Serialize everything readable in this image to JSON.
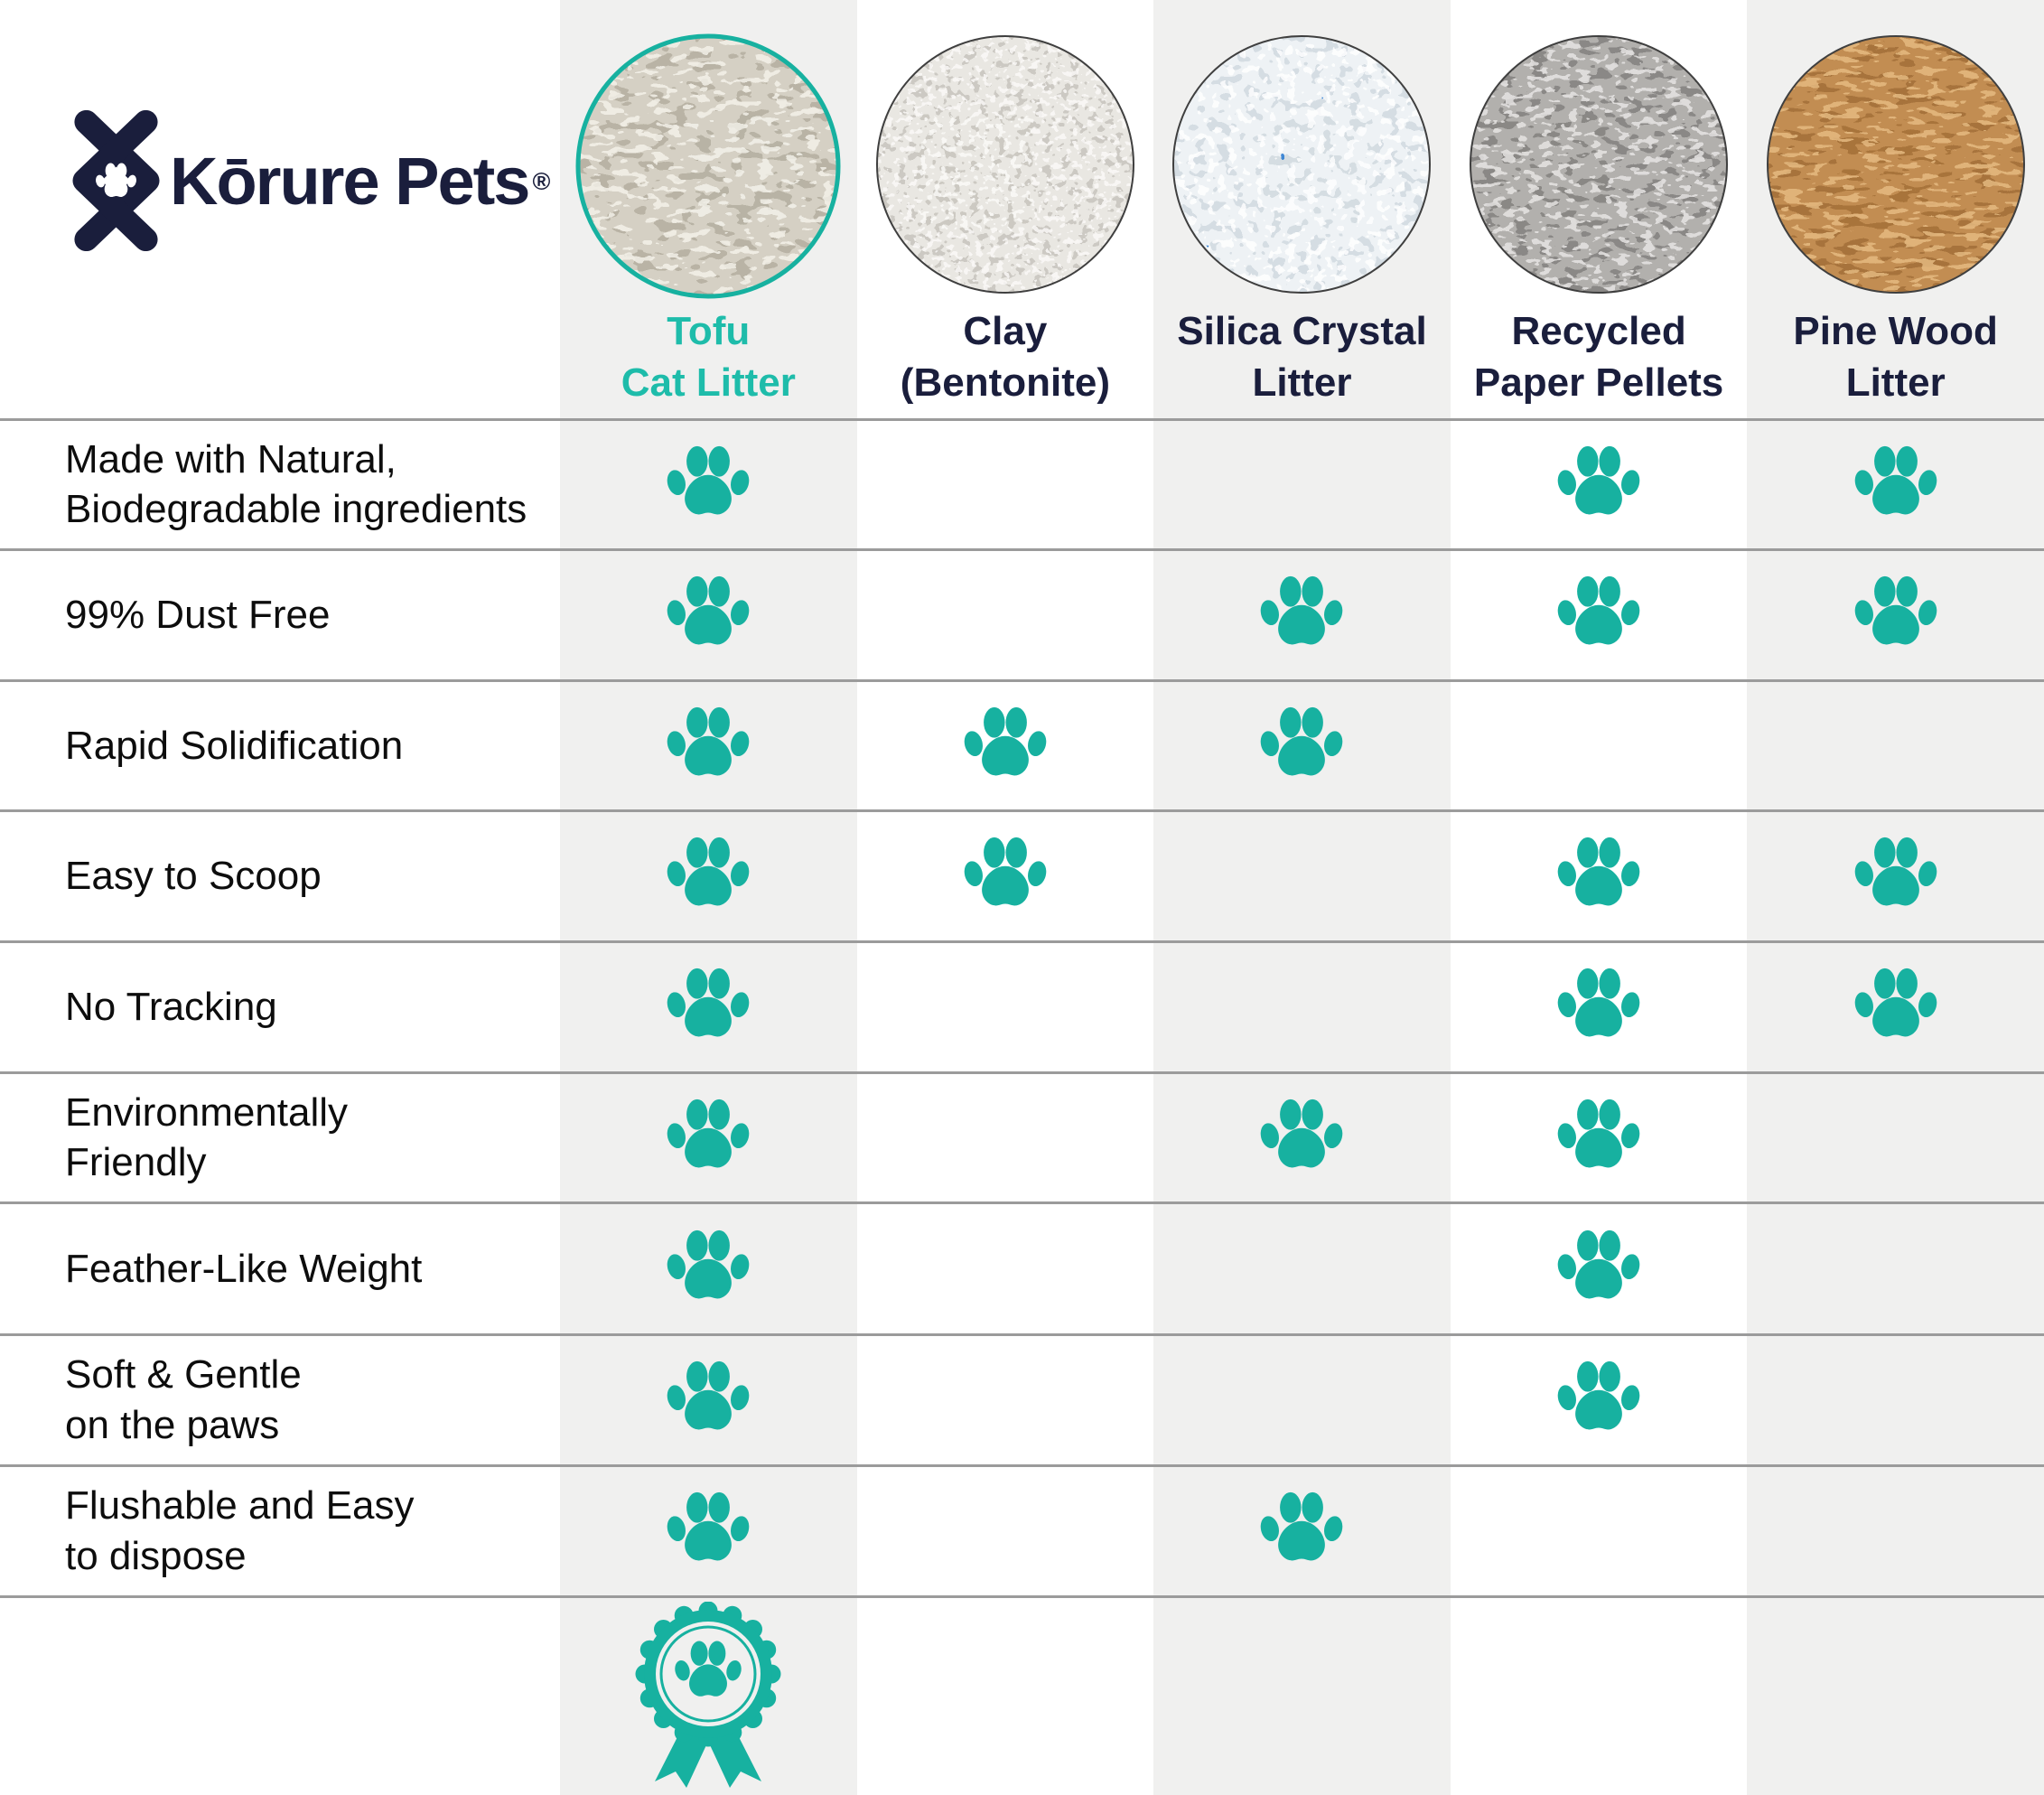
{
  "colors": {
    "accent": "#17b1a0",
    "accent-text": "#1ebcaa",
    "navy": "#1a1e3c",
    "row-label": "#0d0d0d",
    "grid-line": "#9b9b9b",
    "col-strip": "#f0f0ef",
    "page-bg": "#ffffff",
    "circle-border": "#3f3f3f"
  },
  "logo": {
    "brand": "Kōrure Pets",
    "registered": "®",
    "mark_icon": "x-paw-monogram"
  },
  "columns": [
    {
      "id": "tofu",
      "line1": "Tofu",
      "line2": "Cat Litter",
      "highlighted": true,
      "image": "tofu-pellets-photo",
      "swatch": {
        "base": "#d5d0c4",
        "dark": "#a29c8c",
        "light": "#f5f3ec",
        "bfx": 0.045,
        "bfy": 0.09
      }
    },
    {
      "id": "clay",
      "line1": "Clay",
      "line2": "(Bentonite)",
      "highlighted": false,
      "image": "clay-granules-photo",
      "swatch": {
        "base": "#e9e7e2",
        "dark": "#b5b1a9",
        "light": "#fcfbf9",
        "bfx": 0.1,
        "bfy": 0.12
      }
    },
    {
      "id": "silica",
      "line1": "Silica Crystal",
      "line2": "Litter",
      "highlighted": false,
      "image": "silica-crystal-photo",
      "swatch": {
        "base": "#eef2f5",
        "dark": "#c2ccd4",
        "light": "#ffffff",
        "bfx": 0.07,
        "bfy": 0.08,
        "blue": "#2d7dd2"
      }
    },
    {
      "id": "paper",
      "line1": "Recycled",
      "line2": "Paper Pellets",
      "highlighted": false,
      "image": "recycled-paper-pellets-photo",
      "swatch": {
        "base": "#b2b0ad",
        "dark": "#6b6966",
        "light": "#e9e8e6",
        "bfx": 0.055,
        "bfy": 0.11
      }
    },
    {
      "id": "pine",
      "line1": "Pine Wood",
      "line2": "Litter",
      "highlighted": false,
      "image": "pine-wood-pellets-photo",
      "swatch": {
        "base": "#c28d52",
        "dark": "#93602c",
        "light": "#e8bd84",
        "bfx": 0.035,
        "bfy": 0.11
      }
    }
  ],
  "features": [
    {
      "label": "Made with Natural,\nBiodegradable ingredients",
      "checks": [
        true,
        false,
        false,
        true,
        true
      ]
    },
    {
      "label": "99% Dust Free",
      "checks": [
        true,
        false,
        true,
        true,
        true
      ]
    },
    {
      "label": "Rapid Solidification",
      "checks": [
        true,
        true,
        true,
        false,
        false
      ]
    },
    {
      "label": "Easy to Scoop",
      "checks": [
        true,
        true,
        false,
        true,
        true
      ]
    },
    {
      "label": "No Tracking",
      "checks": [
        true,
        false,
        false,
        true,
        true
      ]
    },
    {
      "label": "Environmentally\nFriendly",
      "checks": [
        true,
        false,
        true,
        true,
        false
      ]
    },
    {
      "label": "Feather-Like Weight",
      "checks": [
        true,
        false,
        false,
        true,
        false
      ]
    },
    {
      "label": "Soft & Gentle\non the paws",
      "checks": [
        true,
        false,
        false,
        true,
        false
      ]
    },
    {
      "label": "Flushable and Easy\nto dispose",
      "checks": [
        true,
        false,
        true,
        false,
        false
      ]
    }
  ],
  "footer": {
    "award_badge_column": "tofu",
    "badge_icon": "paw-award-rosette"
  }
}
